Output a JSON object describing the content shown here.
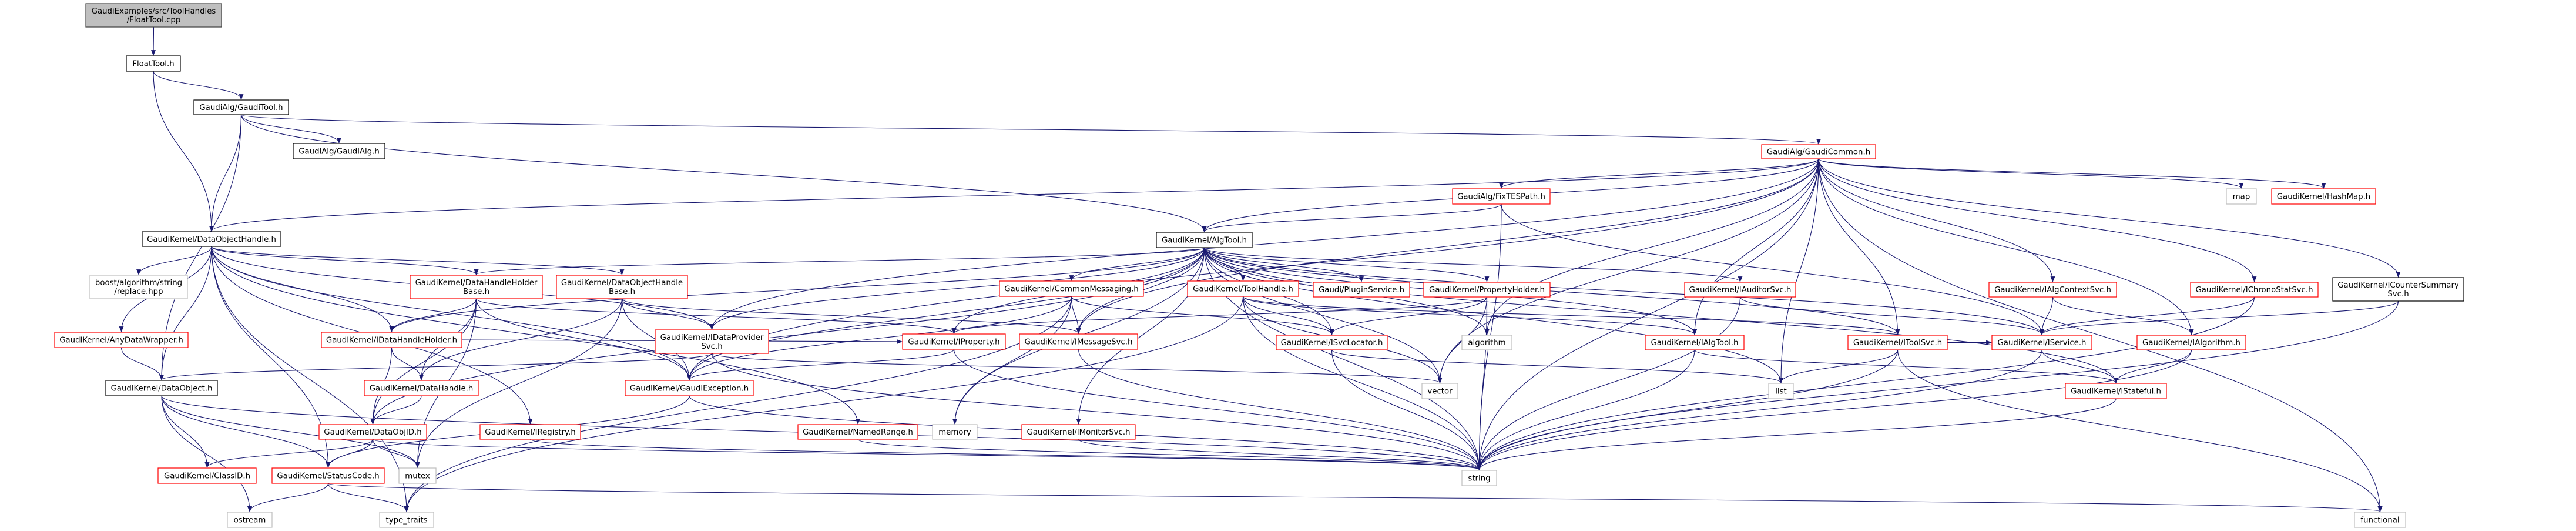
{
  "colors": {
    "edge": "#191970",
    "current_fill": "#bfbfbf",
    "current_border": "#404040",
    "red_border": "#ff0000",
    "black_border": "#000000",
    "gray_border": "#bfbfbf",
    "fill": "#ffffff"
  },
  "nodes": [
    {
      "id": "cpp",
      "lines": [
        "GaudiExamples/src/ToolHandles",
        "/FloatTool.cpp"
      ],
      "style": "current"
    },
    {
      "id": "floath",
      "lines": [
        "FloatTool.h"
      ],
      "style": "black"
    },
    {
      "id": "gauditool",
      "lines": [
        "GaudiAlg/GaudiTool.h"
      ],
      "style": "black"
    },
    {
      "id": "gaudialg",
      "lines": [
        "GaudiAlg/GaudiAlg.h"
      ],
      "style": "black"
    },
    {
      "id": "gaudicommon",
      "lines": [
        "GaudiAlg/GaudiCommon.h"
      ],
      "style": "red"
    },
    {
      "id": "fixtes",
      "lines": [
        "GaudiAlg/FixTESPath.h"
      ],
      "style": "red"
    },
    {
      "id": "map",
      "lines": [
        "map"
      ],
      "style": "gray"
    },
    {
      "id": "hashmap",
      "lines": [
        "GaudiKernel/HashMap.h"
      ],
      "style": "red"
    },
    {
      "id": "doh",
      "lines": [
        "GaudiKernel/DataObjectHandle.h"
      ],
      "style": "black"
    },
    {
      "id": "algtool",
      "lines": [
        "GaudiKernel/AlgTool.h"
      ],
      "style": "black"
    },
    {
      "id": "boost",
      "lines": [
        "boost/algorithm/string",
        "/replace.hpp"
      ],
      "style": "gray"
    },
    {
      "id": "dhhb",
      "lines": [
        "GaudiKernel/DataHandleHolder",
        "Base.h"
      ],
      "style": "red"
    },
    {
      "id": "dohb",
      "lines": [
        "GaudiKernel/DataObjectHandle",
        "Base.h"
      ],
      "style": "red"
    },
    {
      "id": "commsg",
      "lines": [
        "GaudiKernel/CommonMessaging.h"
      ],
      "style": "red"
    },
    {
      "id": "toolhandle",
      "lines": [
        "GaudiKernel/ToolHandle.h"
      ],
      "style": "red"
    },
    {
      "id": "plugin",
      "lines": [
        "Gaudi/PluginService.h"
      ],
      "style": "red"
    },
    {
      "id": "propholder",
      "lines": [
        "GaudiKernel/PropertyHolder.h"
      ],
      "style": "red"
    },
    {
      "id": "iauditor",
      "lines": [
        "GaudiKernel/IAuditorSvc.h"
      ],
      "style": "red"
    },
    {
      "id": "ialgctx",
      "lines": [
        "GaudiKernel/IAlgContextSvc.h"
      ],
      "style": "red"
    },
    {
      "id": "ichrono",
      "lines": [
        "GaudiKernel/IChronoStatSvc.h"
      ],
      "style": "red"
    },
    {
      "id": "icounter",
      "lines": [
        "GaudiKernel/ICounterSummary",
        "Svc.h"
      ],
      "style": "black"
    },
    {
      "id": "anydw",
      "lines": [
        "GaudiKernel/AnyDataWrapper.h"
      ],
      "style": "red"
    },
    {
      "id": "idhh",
      "lines": [
        "GaudiKernel/IDataHandleHolder.h"
      ],
      "style": "red"
    },
    {
      "id": "idps",
      "lines": [
        "GaudiKernel/IDataProvider",
        "Svc.h"
      ],
      "style": "red"
    },
    {
      "id": "iproperty",
      "lines": [
        "GaudiKernel/IProperty.h"
      ],
      "style": "red"
    },
    {
      "id": "imsgsvc",
      "lines": [
        "GaudiKernel/IMessageSvc.h"
      ],
      "style": "red"
    },
    {
      "id": "isvcloc",
      "lines": [
        "GaudiKernel/ISvcLocator.h"
      ],
      "style": "red"
    },
    {
      "id": "algorithm",
      "lines": [
        "algorithm"
      ],
      "style": "gray"
    },
    {
      "id": "ialgtool",
      "lines": [
        "GaudiKernel/IAlgTool.h"
      ],
      "style": "red"
    },
    {
      "id": "itoolsvc",
      "lines": [
        "GaudiKernel/IToolSvc.h"
      ],
      "style": "red"
    },
    {
      "id": "iservice",
      "lines": [
        "GaudiKernel/IService.h"
      ],
      "style": "red"
    },
    {
      "id": "ialgorithm",
      "lines": [
        "GaudiKernel/IAlgorithm.h"
      ],
      "style": "red"
    },
    {
      "id": "dataobject",
      "lines": [
        "GaudiKernel/DataObject.h"
      ],
      "style": "black"
    },
    {
      "id": "datahandle",
      "lines": [
        "GaudiKernel/DataHandle.h"
      ],
      "style": "red"
    },
    {
      "id": "gexc",
      "lines": [
        "GaudiKernel/GaudiException.h"
      ],
      "style": "red"
    },
    {
      "id": "vector",
      "lines": [
        "vector"
      ],
      "style": "gray"
    },
    {
      "id": "list",
      "lines": [
        "list"
      ],
      "style": "gray"
    },
    {
      "id": "istateful",
      "lines": [
        "GaudiKernel/IStateful.h"
      ],
      "style": "red"
    },
    {
      "id": "dataobjid",
      "lines": [
        "GaudiKernel/DataObjID.h"
      ],
      "style": "red"
    },
    {
      "id": "iregistry",
      "lines": [
        "GaudiKernel/IRegistry.h"
      ],
      "style": "red"
    },
    {
      "id": "namedrange",
      "lines": [
        "GaudiKernel/NamedRange.h"
      ],
      "style": "red"
    },
    {
      "id": "memory",
      "lines": [
        "memory"
      ],
      "style": "gray"
    },
    {
      "id": "imonitor",
      "lines": [
        "GaudiKernel/IMonitorSvc.h"
      ],
      "style": "red"
    },
    {
      "id": "classid",
      "lines": [
        "GaudiKernel/ClassID.h"
      ],
      "style": "red"
    },
    {
      "id": "statuscode",
      "lines": [
        "GaudiKernel/StatusCode.h"
      ],
      "style": "red"
    },
    {
      "id": "mutex",
      "lines": [
        "mutex"
      ],
      "style": "gray"
    },
    {
      "id": "string",
      "lines": [
        "string"
      ],
      "style": "gray"
    },
    {
      "id": "ostream",
      "lines": [
        "ostream"
      ],
      "style": "gray"
    },
    {
      "id": "typetraits",
      "lines": [
        "type_traits"
      ],
      "style": "gray"
    },
    {
      "id": "functional",
      "lines": [
        "functional"
      ],
      "style": "gray"
    }
  ],
  "edges": [
    [
      "cpp",
      "floath"
    ],
    [
      "floath",
      "gauditool"
    ],
    [
      "floath",
      "doh"
    ],
    [
      "gauditool",
      "gaudialg"
    ],
    [
      "gauditool",
      "gaudicommon"
    ],
    [
      "gauditool",
      "algtool"
    ],
    [
      "gauditool",
      "doh"
    ],
    [
      "gauditool",
      "dataobject"
    ],
    [
      "gaudicommon",
      "fixtes"
    ],
    [
      "gaudicommon",
      "algtool"
    ],
    [
      "gaudicommon",
      "doh"
    ],
    [
      "gaudicommon",
      "map"
    ],
    [
      "gaudicommon",
      "hashmap"
    ],
    [
      "gaudicommon",
      "idps"
    ],
    [
      "gaudicommon",
      "gexc"
    ],
    [
      "gaudicommon",
      "ialgctx"
    ],
    [
      "gaudicommon",
      "ichrono"
    ],
    [
      "gaudicommon",
      "icounter"
    ],
    [
      "gaudicommon",
      "ialgorithm"
    ],
    [
      "gaudicommon",
      "imsgsvc"
    ],
    [
      "gaudicommon",
      "ialgtool"
    ],
    [
      "gaudicommon",
      "itoolsvc"
    ],
    [
      "gaudicommon",
      "algorithm"
    ],
    [
      "gaudicommon",
      "vector"
    ],
    [
      "gaudicommon",
      "list"
    ],
    [
      "gaudicommon",
      "string"
    ],
    [
      "gaudicommon",
      "functional"
    ],
    [
      "fixtes",
      "algtool"
    ],
    [
      "fixtes",
      "string"
    ],
    [
      "fixtes",
      "iservice"
    ],
    [
      "algtool",
      "commsg"
    ],
    [
      "algtool",
      "toolhandle"
    ],
    [
      "algtool",
      "plugin"
    ],
    [
      "algtool",
      "propholder"
    ],
    [
      "algtool",
      "iauditor"
    ],
    [
      "algtool",
      "ialgtool"
    ],
    [
      "algtool",
      "itoolsvc"
    ],
    [
      "algtool",
      "iservice"
    ],
    [
      "algtool",
      "istateful"
    ],
    [
      "algtool",
      "imsgsvc"
    ],
    [
      "algtool",
      "iproperty"
    ],
    [
      "algtool",
      "isvcloc"
    ],
    [
      "algtool",
      "idps"
    ],
    [
      "algtool",
      "dhhb"
    ],
    [
      "algtool",
      "idhh"
    ],
    [
      "algtool",
      "gexc"
    ],
    [
      "algtool",
      "imonitor"
    ],
    [
      "algtool",
      "memory"
    ],
    [
      "algtool",
      "vector"
    ],
    [
      "algtool",
      "list"
    ],
    [
      "algtool",
      "algorithm"
    ],
    [
      "algtool",
      "string"
    ],
    [
      "algtool",
      "dataobjid"
    ],
    [
      "doh",
      "boost"
    ],
    [
      "doh",
      "anydw"
    ],
    [
      "doh",
      "dohb"
    ],
    [
      "doh",
      "idhh"
    ],
    [
      "doh",
      "dataobject"
    ],
    [
      "doh",
      "iregistry"
    ],
    [
      "doh",
      "namedrange"
    ],
    [
      "doh",
      "gexc"
    ],
    [
      "doh",
      "idps"
    ],
    [
      "doh",
      "typetraits"
    ],
    [
      "doh",
      "statuscode"
    ],
    [
      "doh",
      "dhhb"
    ],
    [
      "dhhb",
      "idhh"
    ],
    [
      "dhhb",
      "datahandle"
    ],
    [
      "dhhb",
      "dataobjid"
    ],
    [
      "dhhb",
      "gexc"
    ],
    [
      "dhhb",
      "iproperty"
    ],
    [
      "dhhb",
      "mutex"
    ],
    [
      "dohb",
      "datahandle"
    ],
    [
      "dohb",
      "idps"
    ],
    [
      "dohb",
      "gexc"
    ],
    [
      "dohb",
      "imsgsvc"
    ],
    [
      "dohb",
      "mutex"
    ],
    [
      "idhh",
      "dataobjid"
    ],
    [
      "idhh",
      "datahandle"
    ],
    [
      "idhh",
      "iproperty"
    ],
    [
      "datahandle",
      "dataobjid"
    ],
    [
      "anydw",
      "dataobject"
    ],
    [
      "dataobject",
      "classid"
    ],
    [
      "dataobject",
      "statuscode"
    ],
    [
      "dataobject",
      "ostream"
    ],
    [
      "dataobject",
      "string"
    ],
    [
      "dataobject",
      "mutex"
    ],
    [
      "dataobjid",
      "classid"
    ],
    [
      "dataobjid",
      "statuscode"
    ],
    [
      "dataobjid",
      "mutex"
    ],
    [
      "dataobjid",
      "string"
    ],
    [
      "statuscode",
      "ostream"
    ],
    [
      "statuscode",
      "typetraits"
    ],
    [
      "statuscode",
      "functional"
    ],
    [
      "idps",
      "dataobject"
    ],
    [
      "idps",
      "string"
    ],
    [
      "idps",
      "vector"
    ],
    [
      "iproperty",
      "gexc"
    ],
    [
      "iproperty",
      "string"
    ],
    [
      "imsgsvc",
      "string"
    ],
    [
      "gexc",
      "statuscode"
    ],
    [
      "gexc",
      "string"
    ],
    [
      "commsg",
      "imsgsvc"
    ],
    [
      "commsg",
      "isvcloc"
    ],
    [
      "commsg",
      "gexc"
    ],
    [
      "commsg",
      "memory"
    ],
    [
      "commsg",
      "typetraits"
    ],
    [
      "toolhandle",
      "ialgtool"
    ],
    [
      "toolhandle",
      "itoolsvc"
    ],
    [
      "toolhandle",
      "isvcloc"
    ],
    [
      "toolhandle",
      "string"
    ],
    [
      "toolhandle",
      "vector"
    ],
    [
      "toolhandle",
      "typetraits"
    ],
    [
      "propholder",
      "iproperty"
    ],
    [
      "propholder",
      "isvcloc"
    ],
    [
      "propholder",
      "vector"
    ],
    [
      "propholder",
      "string"
    ],
    [
      "propholder",
      "algorithm"
    ],
    [
      "iauditor",
      "iservice"
    ],
    [
      "iauditor",
      "string"
    ],
    [
      "isvcloc",
      "list"
    ],
    [
      "isvcloc",
      "string"
    ],
    [
      "ialgtool",
      "istateful"
    ],
    [
      "ialgtool",
      "string"
    ],
    [
      "itoolsvc",
      "iservice"
    ],
    [
      "itoolsvc",
      "list"
    ],
    [
      "itoolsvc",
      "string"
    ],
    [
      "itoolsvc",
      "functional"
    ],
    [
      "iservice",
      "istateful"
    ],
    [
      "iservice",
      "string"
    ],
    [
      "ialgorithm",
      "istateful"
    ],
    [
      "ialgorithm",
      "string"
    ],
    [
      "istateful",
      "string"
    ],
    [
      "ialgctx",
      "iservice"
    ],
    [
      "ialgctx",
      "ialgorithm"
    ],
    [
      "ichrono",
      "iservice"
    ],
    [
      "ichrono",
      "string"
    ],
    [
      "icounter",
      "iservice"
    ],
    [
      "icounter",
      "string"
    ],
    [
      "iregistry",
      "string"
    ],
    [
      "namedrange",
      "string"
    ],
    [
      "imonitor",
      "string"
    ]
  ]
}
